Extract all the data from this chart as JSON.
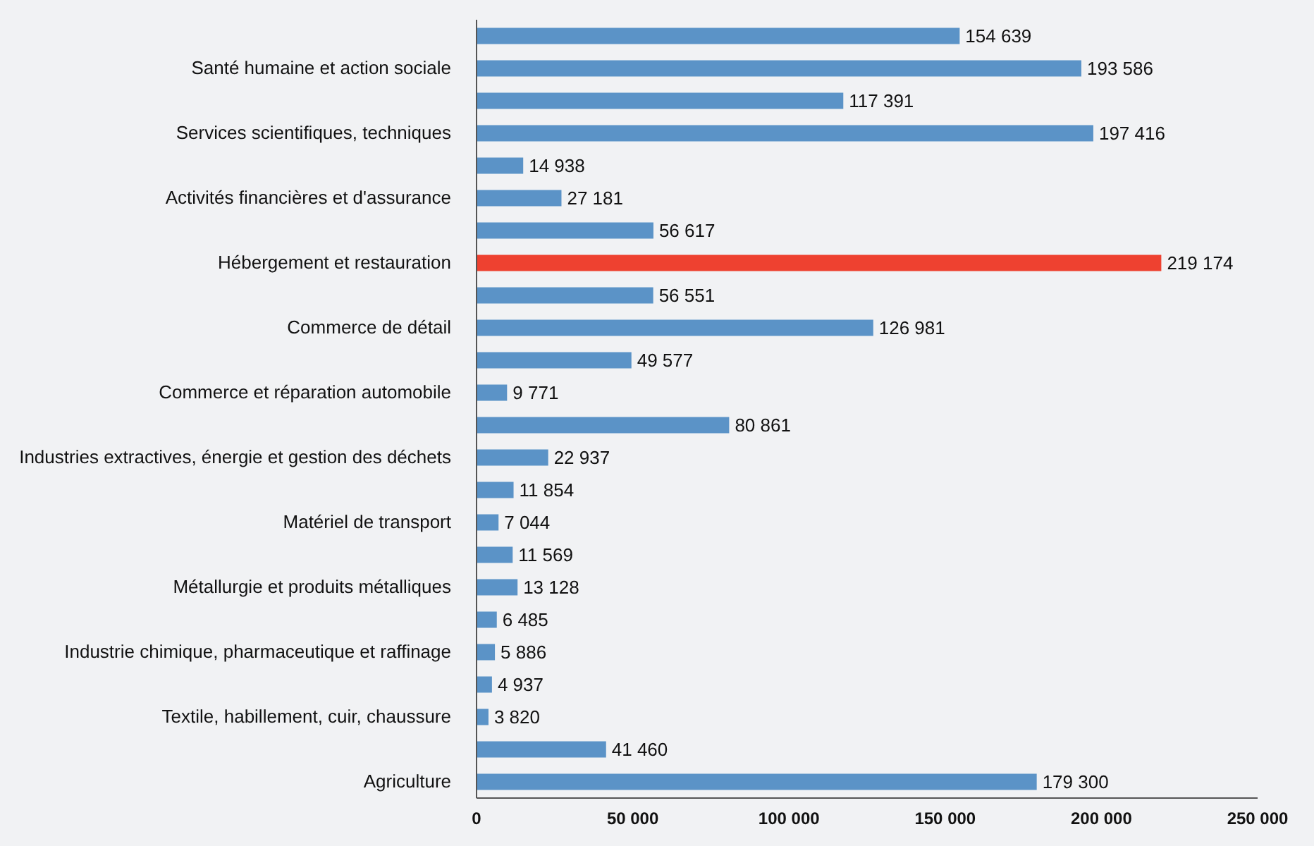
{
  "chart_data": {
    "type": "bar",
    "orientation": "horizontal",
    "categories": [
      null,
      "Santé humaine et action sociale",
      null,
      "Services scientifiques, techniques",
      null,
      "Activités financières et d'assurance",
      null,
      "Hébergement et restauration",
      null,
      "Commerce de détail",
      null,
      "Commerce et réparation automobile",
      null,
      "Industries extractives, énergie et gestion des déchets",
      null,
      "Matériel de transport",
      null,
      "Métallurgie et produits métalliques",
      null,
      "Industrie chimique, pharmaceutique et raffinage",
      null,
      "Textile, habillement, cuir, chaussure",
      null,
      "Agriculture"
    ],
    "values": [
      154639,
      193586,
      117391,
      197416,
      14938,
      27181,
      56617,
      219174,
      56551,
      126981,
      49577,
      9771,
      80861,
      22937,
      11854,
      7044,
      11569,
      13128,
      6485,
      5886,
      4937,
      3820,
      41460,
      179300
    ],
    "value_labels": [
      "154 639",
      "193 586",
      "117 391",
      "197 416",
      "14 938",
      "27 181",
      "56 617",
      "219 174",
      "56 551",
      "126 981",
      "49 577",
      "9 771",
      "80 861",
      "22 937",
      "11 854",
      "7 044",
      "11 569",
      "13 128",
      "6 485",
      "5 886",
      "4 937",
      "3 820",
      "41 460",
      "179 300"
    ],
    "colors": [
      "#5b93c7",
      "#5b93c7",
      "#5b93c7",
      "#5b93c7",
      "#5b93c7",
      "#5b93c7",
      "#5b93c7",
      "#ee4130",
      "#5b93c7",
      "#5b93c7",
      "#5b93c7",
      "#5b93c7",
      "#5b93c7",
      "#5b93c7",
      "#5b93c7",
      "#5b93c7",
      "#5b93c7",
      "#5b93c7",
      "#5b93c7",
      "#5b93c7",
      "#5b93c7",
      "#5b93c7",
      "#5b93c7",
      "#5b93c7"
    ],
    "xlim": [
      0,
      250000
    ],
    "xticks": [
      0,
      {
        "value": 50000,
        "label": "50 000"
      },
      {
        "value": 100000,
        "label": "100 000"
      },
      {
        "value": 150000,
        "label": "150 000"
      },
      {
        "value": 200000,
        "label": "200 000"
      },
      {
        "value": 250000,
        "label": "250 000"
      }
    ],
    "grid": false
  }
}
